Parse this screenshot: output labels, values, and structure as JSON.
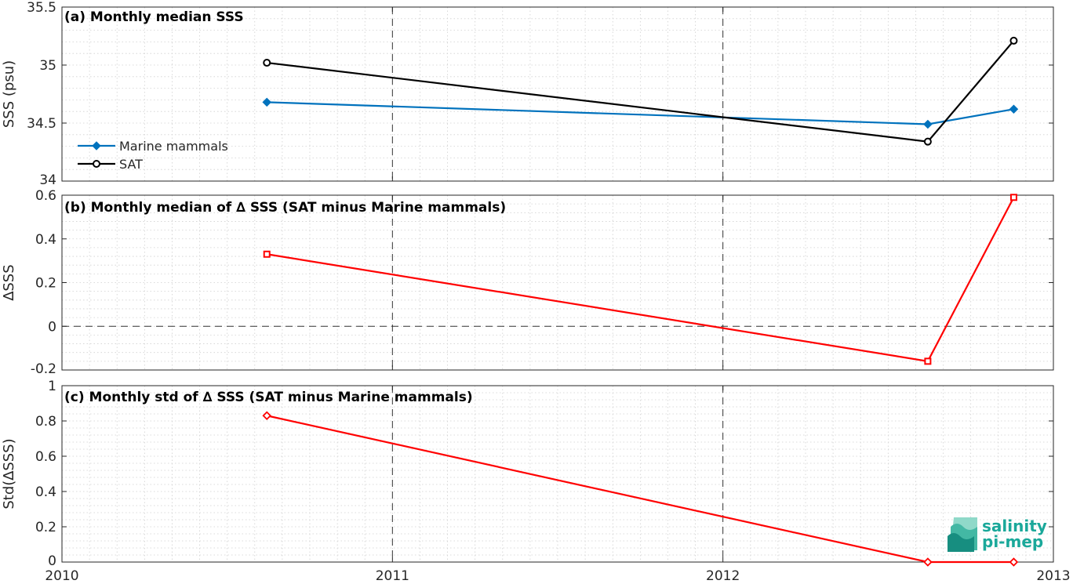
{
  "chart_data": [
    {
      "type": "line",
      "title": "(a) Monthly median SSS",
      "ylabel": "SSS (psu)",
      "xlim": [
        2010,
        2013
      ],
      "ylim": [
        34,
        35.5
      ],
      "yticks": [
        "34",
        "34.5",
        "35",
        "35.5"
      ],
      "yticks_values": [
        34,
        34.5,
        35,
        35.5
      ],
      "grid": true,
      "legend_position": "left",
      "series": [
        {
          "name": "Marine mammals",
          "color": "#0072bd",
          "marker": "diamond",
          "x": [
            2010.62,
            2012.62,
            2012.88
          ],
          "values": [
            34.68,
            34.49,
            34.62
          ]
        },
        {
          "name": "SAT",
          "color": "#000000",
          "marker": "circle",
          "x": [
            2010.62,
            2012.62,
            2012.88
          ],
          "values": [
            35.02,
            34.34,
            35.21
          ]
        }
      ]
    },
    {
      "type": "line",
      "title": "(b) Monthly median of ∆ SSS (SAT minus Marine mammals)",
      "ylabel": "∆SSS",
      "xlim": [
        2010,
        2013
      ],
      "ylim": [
        -0.2,
        0.6
      ],
      "yticks": [
        "-0.2",
        "0",
        "0.2",
        "0.4",
        "0.6"
      ],
      "yticks_values": [
        -0.2,
        0,
        0.2,
        0.4,
        0.6
      ],
      "grid": true,
      "zero_line": true,
      "series": [
        {
          "color": "#ff0000",
          "marker": "square",
          "x": [
            2010.62,
            2012.62,
            2012.88
          ],
          "values": [
            0.33,
            -0.16,
            0.59
          ]
        }
      ]
    },
    {
      "type": "line",
      "title": "(c) Monthly std of ∆ SSS (SAT minus Marine mammals)",
      "ylabel": "Std(∆SSS)",
      "xlim": [
        2010,
        2013
      ],
      "ylim": [
        0,
        1
      ],
      "yticks": [
        "0",
        "0.2",
        "0.4",
        "0.6",
        "0.8",
        "1"
      ],
      "yticks_values": [
        0,
        0.2,
        0.4,
        0.6,
        0.8,
        1
      ],
      "xticks": [
        "2010",
        "2011",
        "2012",
        "2013"
      ],
      "xticks_values": [
        2010,
        2011,
        2012,
        2013
      ],
      "grid": true,
      "series": [
        {
          "color": "#ff0000",
          "marker": "diamond",
          "x": [
            2010.62,
            2012.62,
            2012.88
          ],
          "values": [
            0.83,
            0.0,
            0.0
          ]
        }
      ]
    }
  ],
  "logo": {
    "line1": "salinity",
    "line2": "pi-mep",
    "color": "#1aa89a"
  }
}
